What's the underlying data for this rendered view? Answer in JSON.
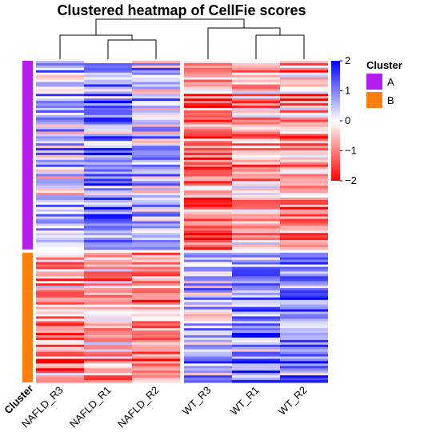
{
  "chart_data": {
    "type": "heatmap",
    "title": "Clustered heatmap of CellFie scores",
    "columns": [
      "NAFLD_R3",
      "NAFLD_R1",
      "NAFLD_R2",
      "WT_R3",
      "WT_R1",
      "WT_R2"
    ],
    "column_groups": [
      [
        "NAFLD_R3",
        "NAFLD_R1",
        "NAFLD_R2"
      ],
      [
        "WT_R3",
        "WT_R1",
        "WT_R2"
      ]
    ],
    "row_annotation": {
      "label": "Cluster",
      "clusters": [
        {
          "name": "A",
          "color": "#b41ef0",
          "row_count": 80
        },
        {
          "name": "B",
          "color": "#ff7f0e",
          "row_count": 55
        }
      ]
    },
    "cluster_mean_scores": {
      "A": [
        0.4,
        0.9,
        0.5,
        -1.2,
        -0.7,
        -0.8
      ],
      "B": [
        -0.8,
        -0.5,
        -0.9,
        0.5,
        0.8,
        0.9
      ]
    },
    "value_range": [
      -2,
      2
    ],
    "colorbar": {
      "ticks": [
        2,
        1,
        0,
        -1,
        -2
      ],
      "colors": [
        "#0000ff",
        "#ffffff",
        "#ff0000"
      ]
    },
    "legend": {
      "title": "Cluster",
      "items": [
        {
          "label": "A",
          "color": "#b41ef0"
        },
        {
          "label": "B",
          "color": "#ff7f0e"
        }
      ]
    }
  }
}
